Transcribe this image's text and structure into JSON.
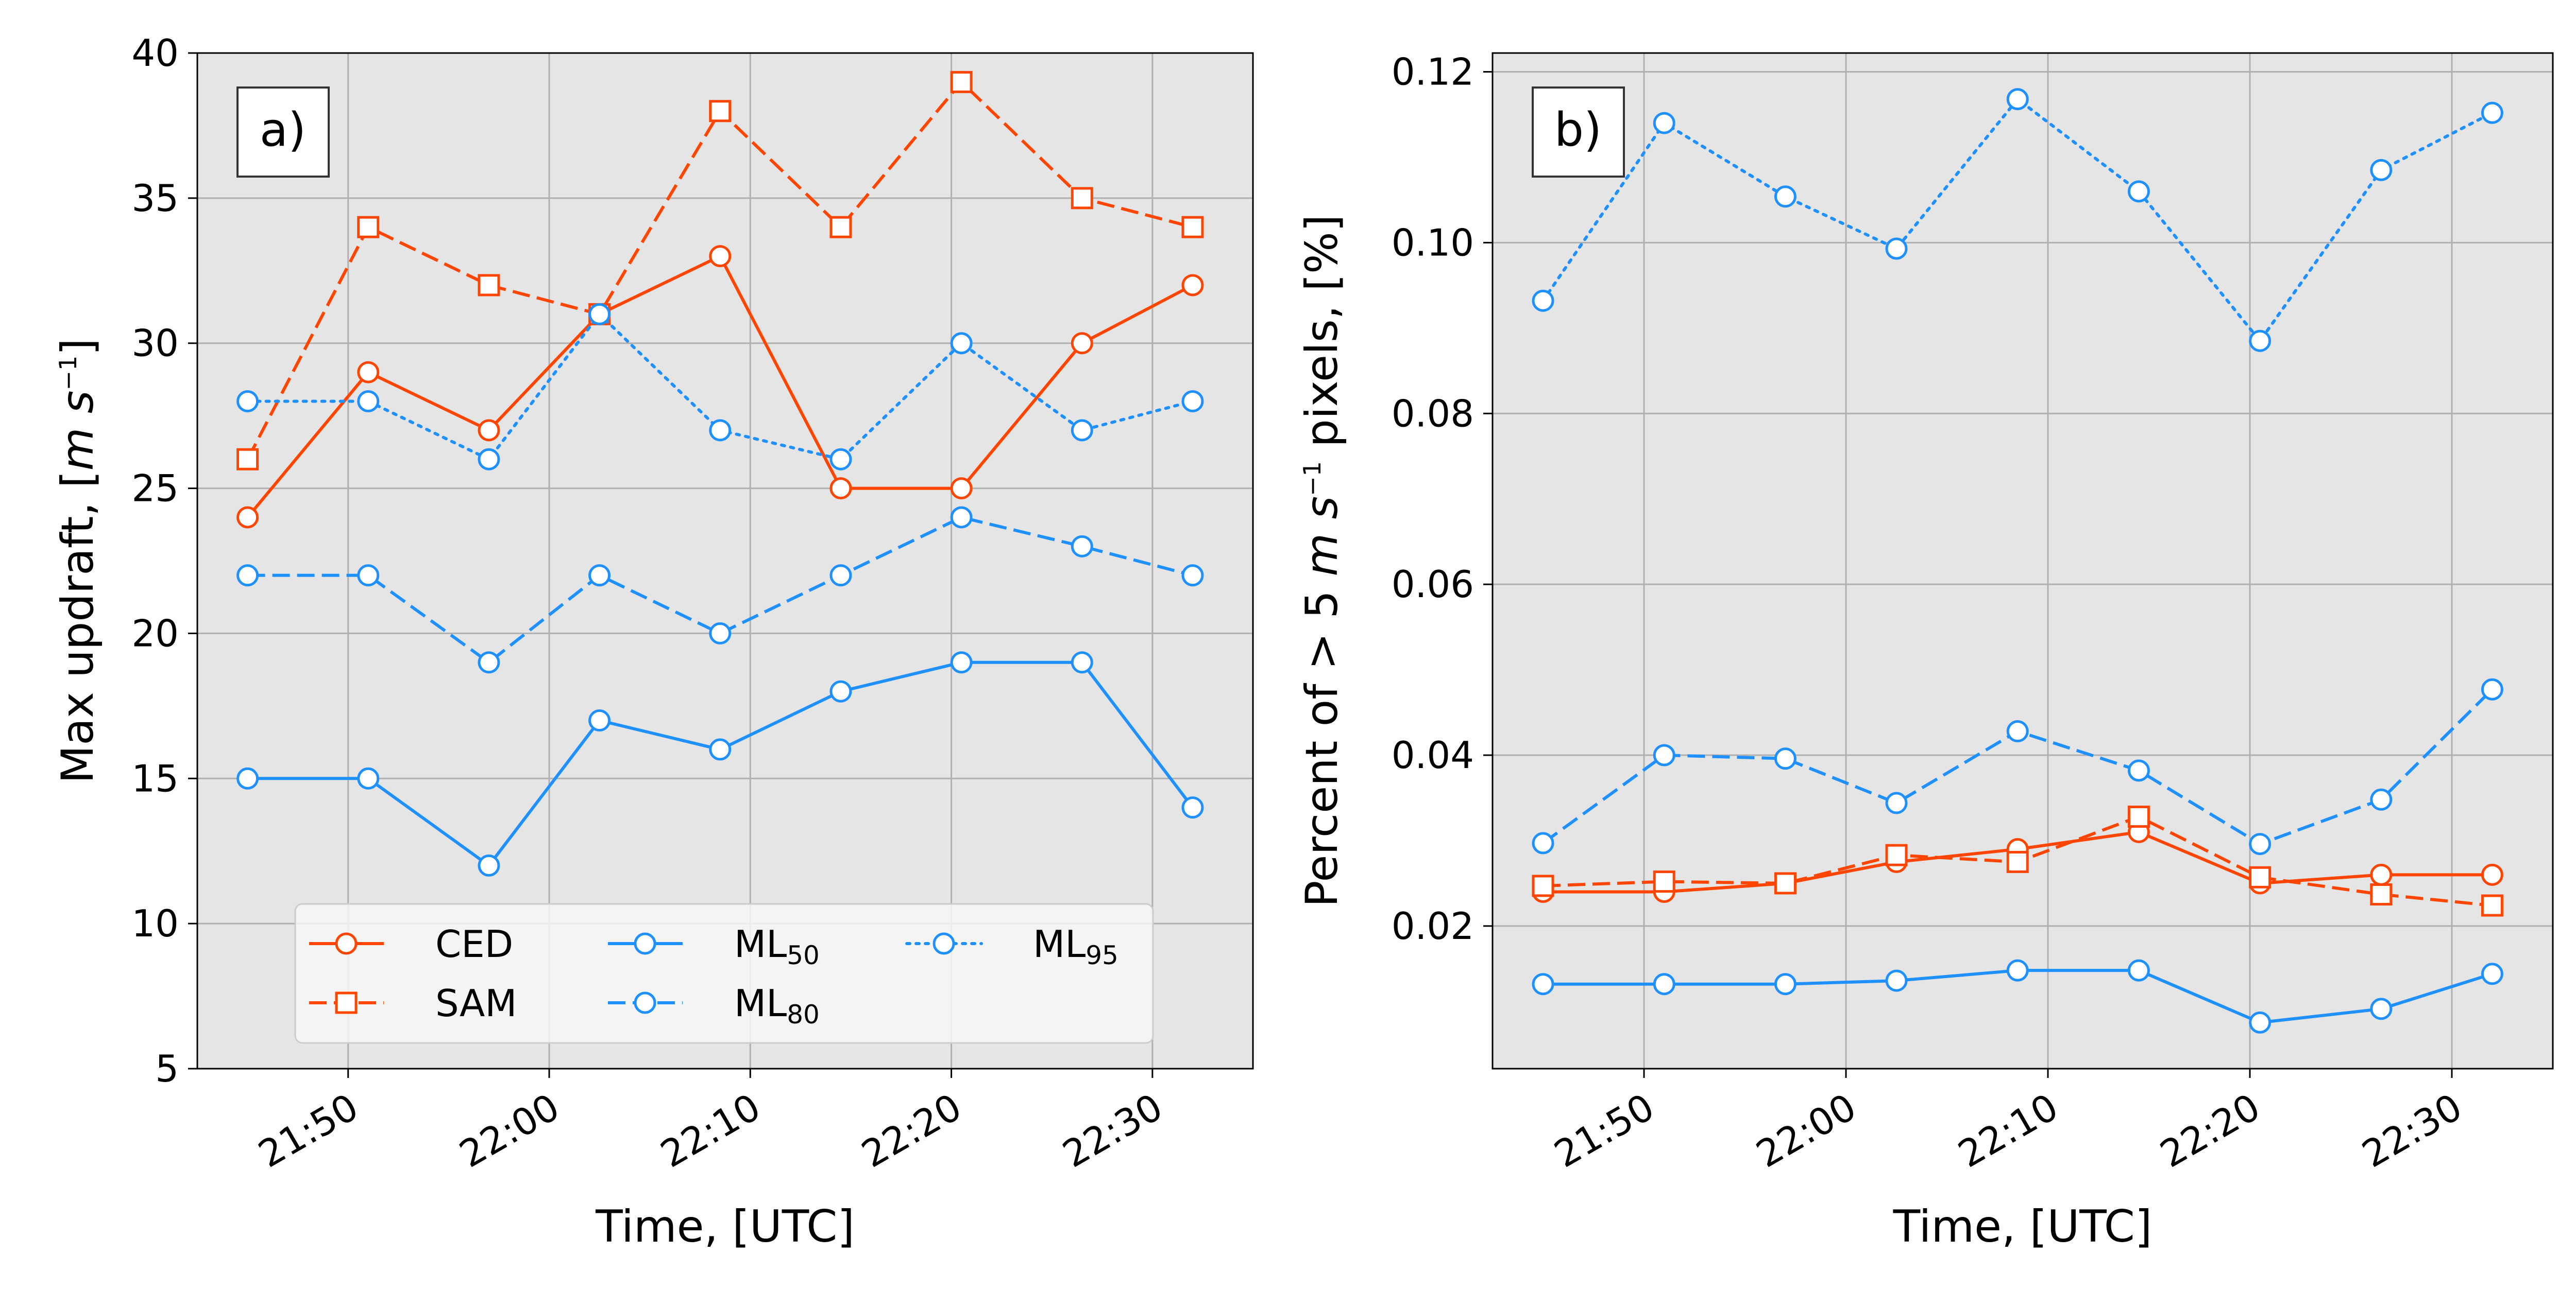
{
  "colors": {
    "ced": "#ff4500",
    "sam": "#ff4500",
    "ml": "#1e90ff",
    "panel_bg": "#e5e5e5",
    "grid": "#b0b0b0"
  },
  "chart_data": [
    {
      "type": "line",
      "panel_label": "a)",
      "title": "",
      "xlabel": "Time, [UTC]",
      "ylabel_prefix": "Max updraft, [",
      "ylabel_unit": "m s",
      "ylabel_exp": "−1",
      "ylabel_suffix": "]",
      "x": [
        "21:45",
        "21:51",
        "21:57",
        "22:02",
        "22:08",
        "22:14",
        "22:20",
        "22:26",
        "22:31"
      ],
      "x_minutes": [
        0,
        6,
        12,
        17.5,
        23.5,
        29.5,
        35.5,
        41.5,
        47
      ],
      "xlim_minutes": [
        -2.5,
        50
      ],
      "xticks": [
        {
          "minute": 5,
          "label": "21:50"
        },
        {
          "minute": 15,
          "label": "22:00"
        },
        {
          "minute": 25,
          "label": "22:10"
        },
        {
          "minute": 35,
          "label": "22:20"
        },
        {
          "minute": 45,
          "label": "22:30"
        }
      ],
      "ylim": [
        5,
        40
      ],
      "yticks": [
        {
          "value": 5,
          "label": "5"
        },
        {
          "value": 10,
          "label": "10"
        },
        {
          "value": 15,
          "label": "15"
        },
        {
          "value": 20,
          "label": "20"
        },
        {
          "value": 25,
          "label": "25"
        },
        {
          "value": 30,
          "label": "30"
        },
        {
          "value": 35,
          "label": "35"
        },
        {
          "value": 40,
          "label": "40"
        }
      ],
      "series": [
        {
          "key": "ced",
          "name": "CED",
          "color": "#ff4500",
          "dash": "solid",
          "marker": "circle",
          "values": [
            24,
            29,
            27,
            31,
            33,
            25,
            25,
            30,
            32
          ]
        },
        {
          "key": "sam",
          "name": "SAM",
          "color": "#ff4500",
          "dash": "dashed",
          "marker": "square",
          "values": [
            26,
            34,
            32,
            31,
            38,
            34,
            39,
            35,
            34
          ]
        },
        {
          "key": "ml50",
          "name": "ML",
          "sub": "50",
          "color": "#1e90ff",
          "dash": "solid",
          "marker": "circle",
          "values": [
            15,
            15,
            12,
            17,
            16,
            18,
            19,
            19,
            14
          ]
        },
        {
          "key": "ml80",
          "name": "ML",
          "sub": "80",
          "color": "#1e90ff",
          "dash": "dashed",
          "marker": "circle",
          "values": [
            22,
            22,
            19,
            22,
            20,
            22,
            24,
            23,
            22
          ]
        },
        {
          "key": "ml95",
          "name": "ML",
          "sub": "95",
          "color": "#1e90ff",
          "dash": "dotted",
          "marker": "circle",
          "values": [
            28,
            28,
            26,
            31,
            27,
            26,
            30,
            27,
            28
          ]
        }
      ],
      "legend": {
        "location": "lower-center",
        "columns": 3
      }
    },
    {
      "type": "line",
      "panel_label": "b)",
      "title": "",
      "xlabel": "Time, [UTC]",
      "ylabel_prefix": "Percent of  >  5 ",
      "ylabel_unit": "m s",
      "ylabel_exp": "−1",
      "ylabel_suffix": " pixels, [%]",
      "x": [
        "21:45",
        "21:51",
        "21:57",
        "22:02",
        "22:08",
        "22:14",
        "22:20",
        "22:26",
        "22:31"
      ],
      "x_minutes": [
        0,
        6,
        12,
        17.5,
        23.5,
        29.5,
        35.5,
        41.5,
        47
      ],
      "xlim_minutes": [
        -2.5,
        50
      ],
      "xticks": [
        {
          "minute": 5,
          "label": "21:50"
        },
        {
          "minute": 15,
          "label": "22:00"
        },
        {
          "minute": 25,
          "label": "22:10"
        },
        {
          "minute": 35,
          "label": "22:20"
        },
        {
          "minute": 45,
          "label": "22:30"
        }
      ],
      "ylim": [
        0.0033,
        0.1222
      ],
      "yticks": [
        {
          "value": 0.02,
          "label": "0.02"
        },
        {
          "value": 0.04,
          "label": "0.04"
        },
        {
          "value": 0.06,
          "label": "0.06"
        },
        {
          "value": 0.08,
          "label": "0.08"
        },
        {
          "value": 0.1,
          "label": "0.10"
        },
        {
          "value": 0.12,
          "label": "0.12"
        }
      ],
      "series": [
        {
          "key": "ced",
          "name": "CED",
          "color": "#ff4500",
          "dash": "solid",
          "marker": "circle",
          "values": [
            0.024,
            0.024,
            0.025,
            0.0275,
            0.029,
            0.031,
            0.025,
            0.026,
            0.026
          ]
        },
        {
          "key": "sam",
          "name": "SAM",
          "color": "#ff4500",
          "dash": "dashed",
          "marker": "square",
          "values": [
            0.0247,
            0.0252,
            0.025,
            0.0283,
            0.0275,
            0.0328,
            0.0257,
            0.0237,
            0.0224
          ]
        },
        {
          "key": "ml50",
          "name": "ML",
          "sub": "50",
          "color": "#1e90ff",
          "dash": "solid",
          "marker": "circle",
          "values": [
            0.0132,
            0.0132,
            0.0132,
            0.0136,
            0.0148,
            0.0148,
            0.0087,
            0.0103,
            0.0144
          ]
        },
        {
          "key": "ml80",
          "name": "ML",
          "sub": "80",
          "color": "#1e90ff",
          "dash": "dashed",
          "marker": "circle",
          "values": [
            0.0297,
            0.04,
            0.0396,
            0.0344,
            0.0428,
            0.0382,
            0.0296,
            0.0348,
            0.0477
          ]
        },
        {
          "key": "ml95",
          "name": "ML",
          "sub": "95",
          "color": "#1e90ff",
          "dash": "dotted",
          "marker": "circle",
          "values": [
            0.0932,
            0.114,
            0.1054,
            0.0993,
            0.1168,
            0.106,
            0.0885,
            0.1085,
            0.1152
          ]
        }
      ]
    }
  ]
}
